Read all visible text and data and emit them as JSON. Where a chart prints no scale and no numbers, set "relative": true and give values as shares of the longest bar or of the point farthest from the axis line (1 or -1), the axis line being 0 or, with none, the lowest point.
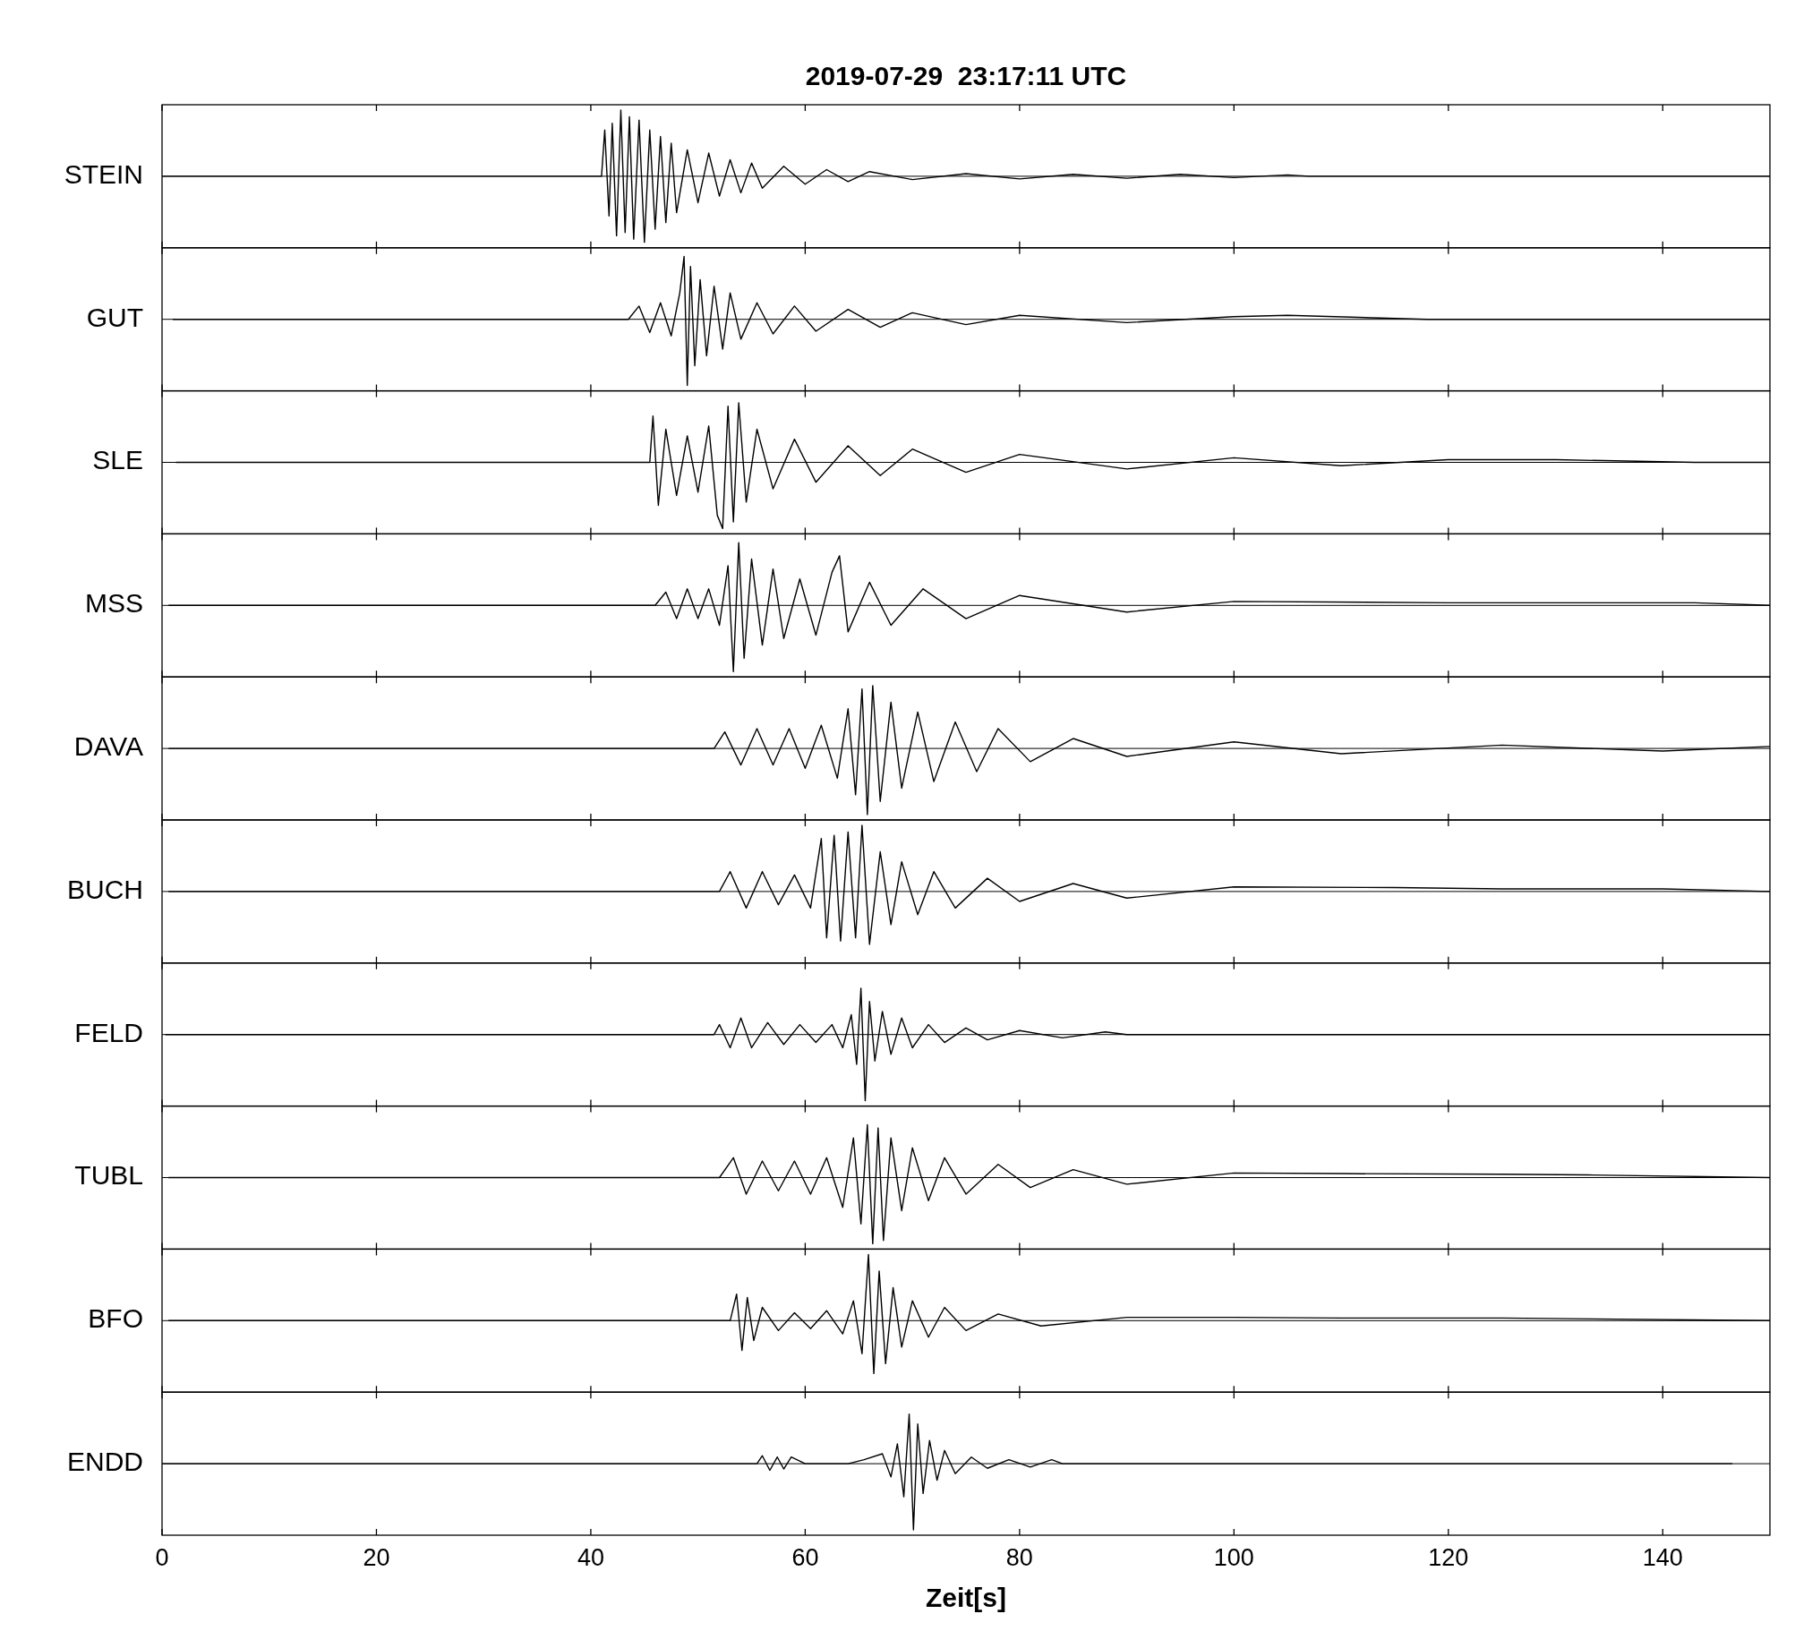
{
  "chart_data": [
    {
      "type": "line",
      "relative": true,
      "title": "2019-07-29  23:17:11 UTC",
      "ylabel": "STEIN",
      "xlim": [
        0,
        150
      ],
      "xticks": [
        0,
        20,
        40,
        60,
        80,
        100,
        120,
        140
      ],
      "tick_labels": false,
      "x": [
        0,
        41,
        41.3,
        41.7,
        42,
        42.4,
        42.8,
        43.2,
        43.6,
        44,
        44.5,
        45,
        45.5,
        46,
        46.5,
        47,
        47.5,
        48,
        49,
        50,
        51,
        52,
        53,
        54,
        55,
        56,
        58,
        60,
        62,
        64,
        66,
        70,
        75,
        80,
        85,
        90,
        95,
        100,
        105,
        107,
        150
      ],
      "series": [
        {
          "color": "#000000",
          "values": [
            0,
            0,
            0.7,
            -0.6,
            0.8,
            -0.9,
            1,
            -0.85,
            0.9,
            -0.95,
            0.85,
            -1,
            0.7,
            -0.8,
            0.6,
            -0.7,
            0.5,
            -0.55,
            0.4,
            -0.4,
            0.35,
            -0.3,
            0.25,
            -0.25,
            0.2,
            -0.18,
            0.15,
            -0.12,
            0.1,
            -0.08,
            0.07,
            -0.05,
            0.04,
            -0.04,
            0.03,
            -0.03,
            0.03,
            -0.02,
            0.02,
            0,
            0
          ]
        }
      ]
    },
    {
      "type": "line",
      "relative": true,
      "ylabel": "GUT",
      "xlim": [
        0,
        150
      ],
      "xticks": [
        0,
        20,
        40,
        60,
        80,
        100,
        120,
        140
      ],
      "tick_labels": false,
      "x": [
        1,
        43.5,
        44.5,
        45.5,
        46.5,
        47.5,
        48.3,
        48.7,
        49,
        49.3,
        49.7,
        50.2,
        50.8,
        51.5,
        52.3,
        53,
        54,
        55.5,
        57,
        59,
        61,
        64,
        67,
        70,
        75,
        80,
        90,
        100,
        105,
        118,
        150
      ],
      "series": [
        {
          "color": "#000000",
          "values": [
            0,
            0,
            0.2,
            -0.2,
            0.25,
            -0.25,
            0.4,
            0.95,
            -1,
            0.8,
            -0.7,
            0.6,
            -0.55,
            0.5,
            -0.45,
            0.4,
            -0.3,
            0.25,
            -0.22,
            0.2,
            -0.18,
            0.15,
            -0.12,
            0.1,
            -0.08,
            0.06,
            -0.05,
            0.04,
            0.06,
            0,
            0
          ]
        }
      ]
    },
    {
      "type": "line",
      "relative": true,
      "ylabel": "SLE",
      "xlim": [
        0,
        150
      ],
      "xticks": [
        0,
        20,
        40,
        60,
        80,
        100,
        120,
        140
      ],
      "tick_labels": false,
      "x": [
        1.3,
        45.5,
        45.8,
        46.3,
        47,
        48,
        49,
        50,
        51,
        51.8,
        52.3,
        52.8,
        53.3,
        53.8,
        54.5,
        55.5,
        57,
        59,
        61,
        64,
        67,
        70,
        75,
        80,
        90,
        100,
        110,
        120,
        130,
        143,
        150
      ],
      "series": [
        {
          "color": "#000000",
          "values": [
            0,
            0,
            0.7,
            -0.65,
            0.5,
            -0.5,
            0.4,
            -0.45,
            0.55,
            -0.8,
            -1,
            0.85,
            -0.9,
            0.9,
            -0.6,
            0.5,
            -0.4,
            0.35,
            -0.3,
            0.25,
            -0.2,
            0.2,
            -0.15,
            0.12,
            -0.1,
            0.07,
            -0.05,
            0.04,
            0.04,
            0,
            0
          ]
        }
      ]
    },
    {
      "type": "line",
      "relative": true,
      "ylabel": "MSS",
      "xlim": [
        0,
        150
      ],
      "xticks": [
        0,
        20,
        40,
        60,
        80,
        100,
        120,
        140
      ],
      "tick_labels": false,
      "x": [
        0.6,
        46,
        47,
        48,
        49,
        50,
        51,
        52,
        52.8,
        53.3,
        53.8,
        54.3,
        55,
        56,
        57,
        58,
        59.5,
        61,
        62.5,
        63.2,
        64,
        66,
        68,
        71,
        75,
        80,
        90,
        100,
        120,
        143,
        150
      ],
      "series": [
        {
          "color": "#000000",
          "values": [
            0,
            0,
            0.2,
            -0.2,
            0.25,
            -0.2,
            0.25,
            -0.3,
            0.6,
            -1,
            0.95,
            -0.8,
            0.7,
            -0.6,
            0.55,
            -0.5,
            0.4,
            -0.45,
            0.5,
            0.75,
            -0.4,
            0.35,
            -0.3,
            0.25,
            -0.2,
            0.15,
            -0.1,
            0.06,
            0.04,
            0.04,
            0
          ]
        }
      ]
    },
    {
      "type": "line",
      "relative": true,
      "ylabel": "DAVA",
      "xlim": [
        0,
        150
      ],
      "xticks": [
        0,
        20,
        40,
        60,
        80,
        100,
        120,
        140
      ],
      "tick_labels": false,
      "x": [
        0.6,
        51.5,
        52.5,
        54,
        55.5,
        57,
        58.5,
        60,
        61.5,
        63,
        64,
        64.7,
        65.3,
        65.8,
        66.3,
        67,
        68,
        69,
        70.5,
        72,
        74,
        76,
        78,
        81,
        85,
        90,
        100,
        110,
        125,
        140,
        150
      ],
      "series": [
        {
          "color": "#000000",
          "values": [
            0,
            0,
            0.25,
            -0.25,
            0.3,
            -0.25,
            0.3,
            -0.3,
            0.35,
            -0.45,
            0.6,
            -0.7,
            0.9,
            -1,
            0.95,
            -0.8,
            0.7,
            -0.6,
            0.55,
            -0.5,
            0.4,
            -0.35,
            0.3,
            -0.2,
            0.15,
            -0.12,
            0.1,
            -0.08,
            0.05,
            -0.04,
            0.03
          ]
        }
      ]
    },
    {
      "type": "line",
      "relative": true,
      "ylabel": "BUCH",
      "xlim": [
        0,
        150
      ],
      "xticks": [
        0,
        20,
        40,
        60,
        80,
        100,
        120,
        140
      ],
      "tick_labels": false,
      "x": [
        0.6,
        52,
        53,
        54.5,
        56,
        57.5,
        59,
        60.5,
        61.5,
        62,
        62.7,
        63.3,
        64,
        64.7,
        65.3,
        66,
        67,
        68,
        69,
        70.5,
        72,
        74,
        77,
        80,
        85,
        90,
        100,
        115,
        125,
        140,
        150
      ],
      "series": [
        {
          "color": "#000000",
          "values": [
            0,
            0,
            0.3,
            -0.25,
            0.3,
            -0.2,
            0.25,
            -0.25,
            0.8,
            -0.7,
            0.85,
            -0.75,
            0.9,
            -0.7,
            1,
            -0.8,
            0.6,
            -0.5,
            0.45,
            -0.35,
            0.3,
            -0.25,
            0.2,
            -0.15,
            0.12,
            -0.1,
            0.07,
            0.06,
            0.04,
            0.04,
            0
          ]
        }
      ]
    },
    {
      "type": "line",
      "relative": true,
      "ylabel": "FELD",
      "xlim": [
        0,
        150
      ],
      "xticks": [
        0,
        20,
        40,
        60,
        80,
        100,
        120,
        140
      ],
      "tick_labels": false,
      "x": [
        0.3,
        51.5,
        52,
        53,
        54,
        55,
        56.5,
        58,
        59.5,
        61,
        62.5,
        63.5,
        64.3,
        64.8,
        65.2,
        65.6,
        66,
        66.5,
        67.2,
        68,
        69,
        70,
        71.5,
        73,
        75,
        77,
        80,
        84,
        88,
        90,
        150
      ],
      "series": [
        {
          "color": "#000000",
          "values": [
            0,
            0,
            0.15,
            -0.2,
            0.25,
            -0.2,
            0.18,
            -0.15,
            0.15,
            -0.12,
            0.15,
            -0.2,
            0.3,
            -0.45,
            0.7,
            -1,
            0.5,
            -0.4,
            0.35,
            -0.3,
            0.25,
            -0.2,
            0.15,
            -0.12,
            0.1,
            -0.08,
            0.06,
            -0.05,
            0.04,
            0,
            0
          ]
        }
      ]
    },
    {
      "type": "line",
      "relative": true,
      "ylabel": "TUBL",
      "xlim": [
        0,
        150
      ],
      "xticks": [
        0,
        20,
        40,
        60,
        80,
        100,
        120,
        140
      ],
      "tick_labels": false,
      "x": [
        0.6,
        52,
        53.3,
        54.5,
        56,
        57.5,
        59,
        60.5,
        62,
        63.5,
        64.5,
        65.2,
        65.8,
        66.3,
        66.8,
        67.3,
        68,
        69,
        70,
        71.5,
        73,
        75,
        78,
        81,
        85,
        90,
        100,
        110,
        125,
        133,
        150
      ],
      "series": [
        {
          "color": "#000000",
          "values": [
            0,
            0,
            0.3,
            -0.25,
            0.25,
            -0.2,
            0.25,
            -0.25,
            0.3,
            -0.45,
            0.6,
            -0.7,
            0.8,
            -1,
            0.75,
            -0.95,
            0.6,
            -0.5,
            0.45,
            -0.35,
            0.3,
            -0.25,
            0.2,
            -0.15,
            0.12,
            -0.1,
            0.07,
            0.06,
            0.05,
            0.04,
            0
          ]
        }
      ]
    },
    {
      "type": "line",
      "relative": true,
      "ylabel": "BFO",
      "xlim": [
        0,
        150
      ],
      "xticks": [
        0,
        20,
        40,
        60,
        80,
        100,
        120,
        140
      ],
      "tick_labels": false,
      "x": [
        0.6,
        53,
        53.6,
        54.1,
        54.6,
        55.2,
        56,
        57.5,
        59,
        60.5,
        62,
        63.5,
        64.5,
        65.3,
        65.9,
        66.4,
        66.9,
        67.5,
        68.2,
        69,
        70,
        71.5,
        73,
        75,
        78,
        82,
        90,
        100,
        110,
        125,
        150
      ],
      "series": [
        {
          "color": "#000000",
          "values": [
            0,
            0,
            0.4,
            -0.45,
            0.35,
            -0.3,
            0.2,
            -0.15,
            0.12,
            -0.12,
            0.15,
            -0.2,
            0.3,
            -0.5,
            1,
            -0.8,
            0.75,
            -0.65,
            0.5,
            -0.4,
            0.3,
            -0.25,
            0.2,
            -0.15,
            0.1,
            -0.08,
            0.05,
            0.05,
            0.04,
            0.04,
            0
          ]
        }
      ]
    },
    {
      "type": "line",
      "relative": true,
      "ylabel": "ENDD",
      "xlabel": "Zeit[s]",
      "xlim": [
        0,
        150
      ],
      "xticks": [
        0,
        20,
        40,
        60,
        80,
        100,
        120,
        140
      ],
      "tick_labels": "x",
      "x": [
        0,
        55.5,
        56,
        56.7,
        57.4,
        58,
        58.7,
        60,
        62,
        64,
        65.5,
        67.2,
        68,
        68.6,
        69.2,
        69.7,
        70.1,
        70.5,
        71,
        71.6,
        72.3,
        73,
        74,
        75.5,
        77,
        79,
        81,
        83,
        84,
        146.5
      ],
      "series": [
        {
          "color": "#000000",
          "values": [
            0,
            0,
            0.12,
            -0.1,
            0.1,
            -0.08,
            0.1,
            0,
            0,
            0,
            0.06,
            0.15,
            -0.2,
            0.3,
            -0.5,
            0.75,
            -1,
            0.6,
            -0.45,
            0.35,
            -0.25,
            0.2,
            -0.15,
            0.1,
            -0.07,
            0.06,
            -0.05,
            0.06,
            0,
            0
          ]
        }
      ]
    }
  ]
}
